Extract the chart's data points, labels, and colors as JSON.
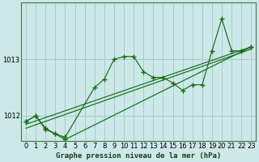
{
  "bg_color": "#cce8e8",
  "grid_color": "#aacccc",
  "line_color": "#1a6b1a",
  "title": "Graphe pression niveau de la mer (hPa)",
  "xlim": [
    -0.5,
    23.5
  ],
  "ylim": [
    1011.55,
    1014.0
  ],
  "yticks": [
    1012,
    1013
  ],
  "xticks": [
    0,
    1,
    2,
    3,
    4,
    5,
    6,
    7,
    8,
    9,
    10,
    11,
    12,
    13,
    14,
    15,
    16,
    17,
    18,
    19,
    20,
    21,
    22,
    23
  ],
  "line1_x": [
    0,
    1,
    2,
    3,
    4,
    7,
    8,
    9,
    10,
    11,
    12,
    13,
    14,
    15,
    16,
    17,
    18,
    19,
    20,
    21,
    22,
    23
  ],
  "line1_y": [
    1011.9,
    1012.0,
    1011.78,
    1011.68,
    1011.62,
    1012.5,
    1012.65,
    1013.0,
    1013.05,
    1013.05,
    1012.78,
    1012.68,
    1012.68,
    1012.58,
    1012.45,
    1012.55,
    1012.55,
    1013.15,
    1013.72,
    1013.15,
    1013.15,
    1013.22
  ],
  "line2_x": [
    0,
    1,
    2,
    3,
    4,
    23
  ],
  "line2_y": [
    1011.9,
    1012.0,
    1011.76,
    1011.68,
    1011.58,
    1013.22
  ],
  "trend1_x": [
    0,
    23
  ],
  "trend1_y": [
    1011.78,
    1013.18
  ],
  "trend2_x": [
    0,
    23
  ],
  "trend2_y": [
    1011.85,
    1013.22
  ]
}
